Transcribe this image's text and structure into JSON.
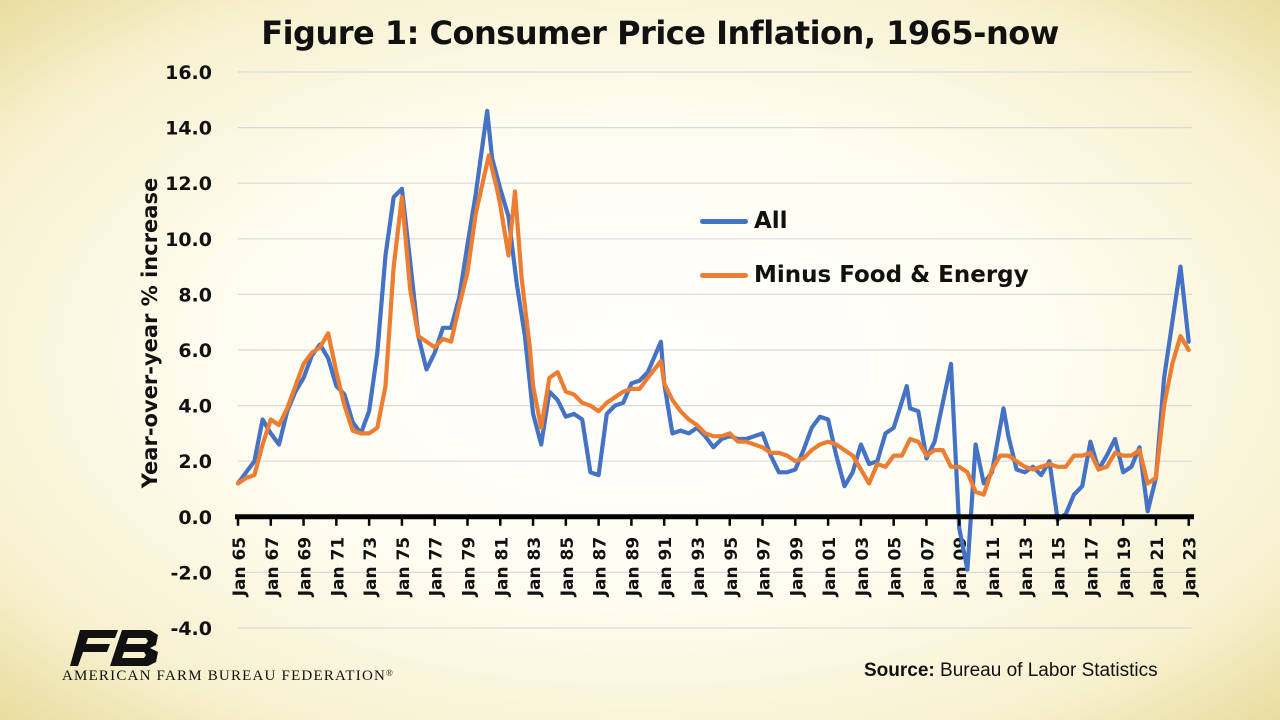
{
  "title": "Figure 1: Consumer Price Inflation, 1965-now",
  "source": {
    "label": "Source:",
    "text": " Bureau of Labor Statistics"
  },
  "logo": {
    "text": "AMERICAN FARM BUREAU FEDERATION",
    "mark": "FB",
    "registered": "®"
  },
  "legend": [
    {
      "name": "All",
      "color": "#4472C4"
    },
    {
      "name": "Minus Food & Energy",
      "color": "#ED7D31"
    }
  ],
  "chart_data": {
    "type": "line",
    "title": "Figure 1: Consumer Price Inflation, 1965-now",
    "xlabel": "",
    "ylabel": "Year-over-year % increase",
    "ylim": [
      -4,
      16
    ],
    "xlim": [
      1965,
      2023.2
    ],
    "yticks": [
      "-4.0",
      "-2.0",
      "0.0",
      "2.0",
      "4.0",
      "6.0",
      "8.0",
      "10.0",
      "12.0",
      "14.0",
      "16.0"
    ],
    "xticks": [
      "Jan 65",
      "Jan 67",
      "Jan 69",
      "Jan 71",
      "Jan 73",
      "Jan 75",
      "Jan 77",
      "Jan 79",
      "Jan 81",
      "Jan 83",
      "Jan 85",
      "Jan 87",
      "Jan 89",
      "Jan 91",
      "Jan 93",
      "Jan 95",
      "Jan 97",
      "Jan 99",
      "Jan 01",
      "Jan 03",
      "Jan 05",
      "Jan 07",
      "Jan 09",
      "Jan 11",
      "Jan 13",
      "Jan 15",
      "Jan 17",
      "Jan 19",
      "Jan 21",
      "Jan 23"
    ],
    "grid": true,
    "legend_position": "upper-right-inside",
    "series": [
      {
        "name": "All",
        "color": "#4472C4",
        "x": [
          1965,
          1965.5,
          1966,
          1966.5,
          1967,
          1967.5,
          1968,
          1968.5,
          1969,
          1969.5,
          1970,
          1970.5,
          1971,
          1971.5,
          1972,
          1972.5,
          1973,
          1973.5,
          1974,
          1974.5,
          1975,
          1975.5,
          1976,
          1976.5,
          1977,
          1977.5,
          1978,
          1978.5,
          1979,
          1979.5,
          1980.2,
          1980.5,
          1981,
          1981.5,
          1982,
          1982.5,
          1983,
          1983.5,
          1984,
          1984.5,
          1985,
          1985.5,
          1986,
          1986.5,
          1987,
          1987.5,
          1988,
          1988.5,
          1989,
          1989.5,
          1990,
          1990.8,
          1991,
          1991.5,
          1992,
          1992.5,
          1993,
          1993.5,
          1994,
          1994.5,
          1995,
          1995.5,
          1996,
          1996.5,
          1997,
          1997.5,
          1998,
          1998.5,
          1999,
          1999.5,
          2000,
          2000.5,
          2001,
          2001.5,
          2002,
          2002.5,
          2003,
          2003.5,
          2004,
          2004.5,
          2005,
          2005.8,
          2006,
          2006.5,
          2007,
          2007.5,
          2008.5,
          2009,
          2009.5,
          2010,
          2010.5,
          2011,
          2011.7,
          2012,
          2012.5,
          2013,
          2013.5,
          2014,
          2014.5,
          2015,
          2015.5,
          2016,
          2016.5,
          2017,
          2017.5,
          2018,
          2018.5,
          2019,
          2019.5,
          2020,
          2020.5,
          2021,
          2021.5,
          2022,
          2022.5,
          2023
        ],
        "y": [
          1.2,
          1.6,
          2.0,
          3.5,
          3.0,
          2.6,
          3.8,
          4.5,
          5.0,
          5.8,
          6.2,
          5.7,
          4.7,
          4.4,
          3.4,
          3.0,
          3.8,
          5.9,
          9.4,
          11.5,
          11.8,
          9.2,
          6.5,
          5.3,
          5.9,
          6.8,
          6.8,
          7.9,
          9.8,
          11.6,
          14.6,
          12.9,
          11.8,
          10.8,
          8.4,
          6.5,
          3.7,
          2.6,
          4.5,
          4.2,
          3.6,
          3.7,
          3.5,
          1.6,
          1.5,
          3.7,
          4.0,
          4.1,
          4.8,
          4.9,
          5.2,
          6.3,
          4.8,
          3.0,
          3.1,
          3.0,
          3.2,
          2.9,
          2.5,
          2.8,
          2.9,
          2.8,
          2.8,
          2.9,
          3.0,
          2.2,
          1.6,
          1.6,
          1.7,
          2.4,
          3.2,
          3.6,
          3.5,
          2.2,
          1.1,
          1.6,
          2.6,
          1.9,
          2.0,
          3.0,
          3.2,
          4.7,
          3.9,
          3.8,
          2.1,
          2.7,
          5.5,
          -0.4,
          -1.9,
          2.6,
          1.2,
          1.6,
          3.9,
          2.9,
          1.7,
          1.6,
          1.8,
          1.5,
          2.0,
          -0.1,
          0.1,
          0.8,
          1.1,
          2.7,
          1.7,
          2.2,
          2.8,
          1.6,
          1.8,
          2.5,
          0.2,
          1.4,
          5.0,
          7.0,
          9.0,
          6.3
        ]
      },
      {
        "name": "Minus Food & Energy",
        "color": "#ED7D31",
        "x": [
          1965,
          1965.5,
          1966,
          1966.5,
          1967,
          1967.5,
          1968,
          1968.5,
          1969,
          1969.5,
          1970,
          1970.5,
          1971,
          1971.5,
          1972,
          1972.5,
          1973,
          1973.5,
          1974,
          1974.5,
          1975,
          1975.5,
          1976,
          1976.5,
          1977,
          1977.5,
          1978,
          1978.5,
          1979,
          1979.5,
          1980.3,
          1980.8,
          1981,
          1981.5,
          1981.9,
          1982.3,
          1982.8,
          1983,
          1983.5,
          1984,
          1984.5,
          1985,
          1985.5,
          1986,
          1986.5,
          1987,
          1987.5,
          1988,
          1988.5,
          1989,
          1989.5,
          1990,
          1990.8,
          1991,
          1991.5,
          1992,
          1992.5,
          1993,
          1993.5,
          1994,
          1994.5,
          1995,
          1995.5,
          1996,
          1996.5,
          1997,
          1997.5,
          1998,
          1998.5,
          1999,
          1999.5,
          2000,
          2000.5,
          2001,
          2001.5,
          2002,
          2002.5,
          2003,
          2003.5,
          2004,
          2004.5,
          2005,
          2005.5,
          2006,
          2006.5,
          2007,
          2007.5,
          2008,
          2008.5,
          2009,
          2009.5,
          2010,
          2010.5,
          2011,
          2011.5,
          2012,
          2012.5,
          2013,
          2013.5,
          2014,
          2014.5,
          2015,
          2015.5,
          2016,
          2016.5,
          2017,
          2017.5,
          2018,
          2018.5,
          2019,
          2019.5,
          2020,
          2020.5,
          2021,
          2021.5,
          2022,
          2022.5,
          2023
        ],
        "y": [
          1.2,
          1.4,
          1.5,
          2.6,
          3.5,
          3.3,
          3.9,
          4.7,
          5.5,
          5.9,
          6.1,
          6.6,
          5.2,
          4.0,
          3.1,
          3.0,
          3.0,
          3.2,
          4.7,
          9.0,
          11.5,
          8.2,
          6.5,
          6.3,
          6.1,
          6.4,
          6.3,
          7.6,
          8.8,
          10.9,
          13.0,
          11.8,
          11.2,
          9.4,
          11.7,
          8.6,
          6.1,
          4.7,
          3.2,
          5.0,
          5.2,
          4.5,
          4.4,
          4.1,
          4.0,
          3.8,
          4.1,
          4.3,
          4.5,
          4.6,
          4.6,
          5.0,
          5.6,
          4.8,
          4.2,
          3.8,
          3.5,
          3.3,
          3.0,
          2.9,
          2.9,
          3.0,
          2.7,
          2.7,
          2.6,
          2.5,
          2.3,
          2.3,
          2.2,
          2.0,
          2.1,
          2.4,
          2.6,
          2.7,
          2.6,
          2.4,
          2.2,
          1.7,
          1.2,
          1.9,
          1.8,
          2.2,
          2.2,
          2.8,
          2.7,
          2.2,
          2.4,
          2.4,
          1.8,
          1.8,
          1.6,
          0.9,
          0.8,
          1.7,
          2.2,
          2.2,
          2.0,
          1.8,
          1.7,
          1.8,
          1.9,
          1.8,
          1.8,
          2.2,
          2.2,
          2.3,
          1.7,
          1.8,
          2.3,
          2.2,
          2.2,
          2.4,
          1.2,
          1.4,
          4.0,
          5.5,
          6.5,
          6.0
        ]
      }
    ]
  }
}
